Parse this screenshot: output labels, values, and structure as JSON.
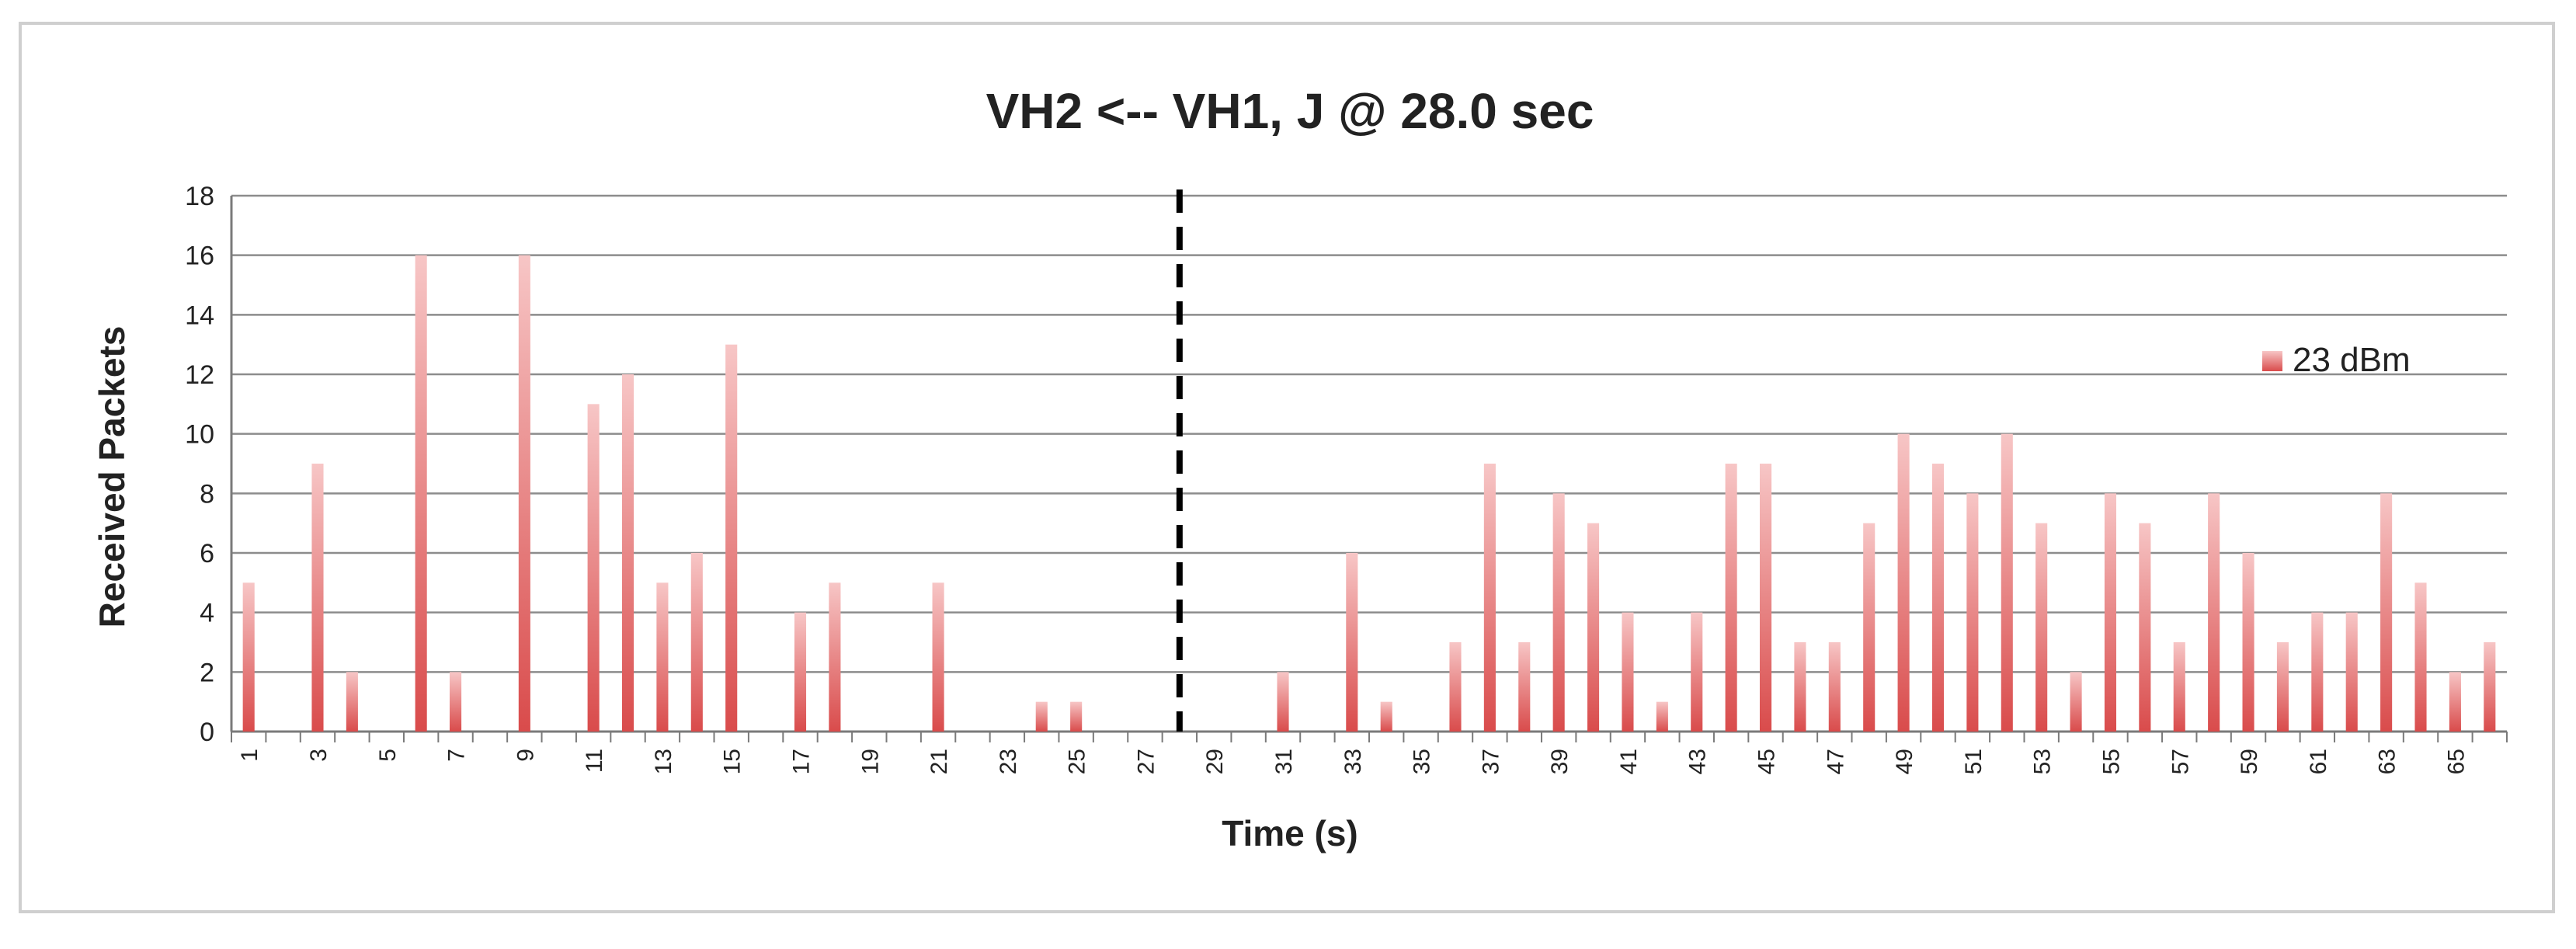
{
  "chart_data": {
    "type": "bar",
    "title": "VH2 <-- VH1, J @ 28.0 sec",
    "xlabel": "Time (s)",
    "ylabel": "Received Packets",
    "ylim": [
      0,
      18
    ],
    "yticks": [
      0,
      2,
      4,
      6,
      8,
      10,
      12,
      14,
      16,
      18
    ],
    "grid": true,
    "legend_position": "right",
    "categories": [
      1,
      2,
      3,
      4,
      5,
      6,
      7,
      8,
      9,
      10,
      11,
      12,
      13,
      14,
      15,
      16,
      17,
      18,
      19,
      20,
      21,
      22,
      23,
      24,
      25,
      26,
      27,
      28,
      29,
      30,
      31,
      32,
      33,
      34,
      35,
      36,
      37,
      38,
      39,
      40,
      41,
      42,
      43,
      44,
      45,
      46,
      47,
      48,
      49,
      50,
      51,
      52,
      53,
      54,
      55,
      56,
      57,
      58,
      59,
      60,
      61,
      62,
      63,
      64,
      65,
      66
    ],
    "xtick_labels": [
      "1",
      "3",
      "5",
      "7",
      "9",
      "11",
      "13",
      "15",
      "17",
      "19",
      "21",
      "23",
      "25",
      "27",
      "29",
      "31",
      "33",
      "35",
      "37",
      "39",
      "41",
      "43",
      "45",
      "47",
      "49",
      "51",
      "53",
      "55",
      "57",
      "59",
      "61",
      "63",
      "65"
    ],
    "series": [
      {
        "name": "23 dBm",
        "color": "#e06666",
        "values": [
          5,
          0,
          9,
          2,
          0,
          16,
          2,
          0,
          16,
          0,
          11,
          12,
          5,
          6,
          13,
          0,
          4,
          5,
          0,
          0,
          5,
          0,
          0,
          1,
          1,
          0,
          0,
          0,
          0,
          0,
          2,
          0,
          6,
          1,
          0,
          3,
          9,
          3,
          8,
          7,
          4,
          1,
          4,
          9,
          9,
          3,
          3,
          7,
          10,
          9,
          8,
          10,
          7,
          2,
          8,
          7,
          3,
          8,
          6,
          3,
          4,
          4,
          8,
          5,
          2,
          3
        ]
      }
    ],
    "annotations": [
      {
        "type": "vertical-dashed-line",
        "x": 28,
        "color": "#000000"
      }
    ]
  }
}
